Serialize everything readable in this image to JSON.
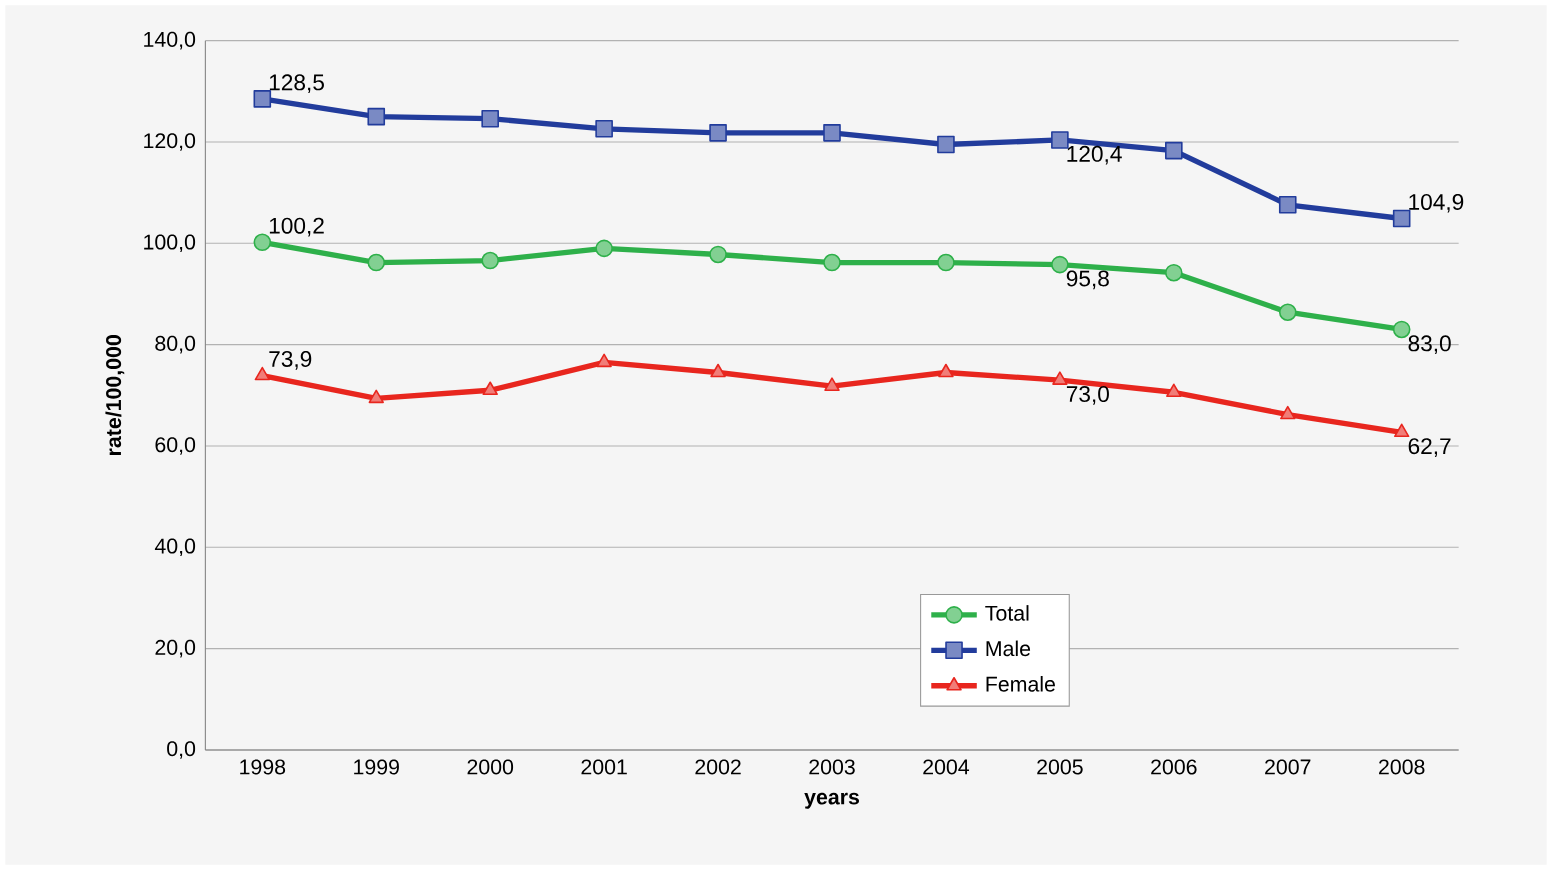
{
  "chart_data": {
    "type": "line",
    "xlabel": "years",
    "ylabel": "rate/100,000",
    "categories": [
      "1998",
      "1999",
      "2000",
      "2001",
      "2002",
      "2003",
      "2004",
      "2005",
      "2006",
      "2007",
      "2008"
    ],
    "series": [
      {
        "name": "Total",
        "color": "#2eb04a",
        "marker": "circle",
        "values": [
          100.2,
          96.2,
          96.6,
          99.0,
          97.8,
          96.2,
          96.2,
          95.8,
          94.2,
          86.4,
          83.0
        ],
        "value_labels": [
          "100,2",
          null,
          null,
          null,
          null,
          null,
          null,
          "95,8",
          null,
          null,
          "83,0"
        ]
      },
      {
        "name": "Male",
        "color": "#223c9c",
        "marker": "square",
        "values": [
          128.5,
          125.0,
          124.6,
          122.6,
          121.8,
          121.8,
          119.5,
          120.4,
          118.3,
          107.6,
          104.9
        ],
        "value_labels": [
          "128,5",
          null,
          null,
          null,
          null,
          null,
          null,
          "120,4",
          null,
          null,
          "104,9"
        ]
      },
      {
        "name": "Female",
        "color": "#e8261e",
        "marker": "triangle",
        "values": [
          73.9,
          69.4,
          71.0,
          76.5,
          74.5,
          71.8,
          74.5,
          73.0,
          70.6,
          66.2,
          62.7
        ],
        "value_labels": [
          "73,9",
          null,
          null,
          null,
          null,
          null,
          null,
          "73,0",
          null,
          null,
          "62,7"
        ]
      }
    ],
    "ylim": [
      0,
      140
    ],
    "yticks": [
      {
        "value": 0,
        "label": "0,0"
      },
      {
        "value": 20,
        "label": "20,0"
      },
      {
        "value": 40,
        "label": "40,0"
      },
      {
        "value": 60,
        "label": "60,0"
      },
      {
        "value": 80,
        "label": "80,0"
      },
      {
        "value": 100,
        "label": "100,0"
      },
      {
        "value": 120,
        "label": "120,0"
      },
      {
        "value": 140,
        "label": "140,0"
      }
    ],
    "grid": "y",
    "legend": "bottom",
    "line_style": "solid"
  }
}
